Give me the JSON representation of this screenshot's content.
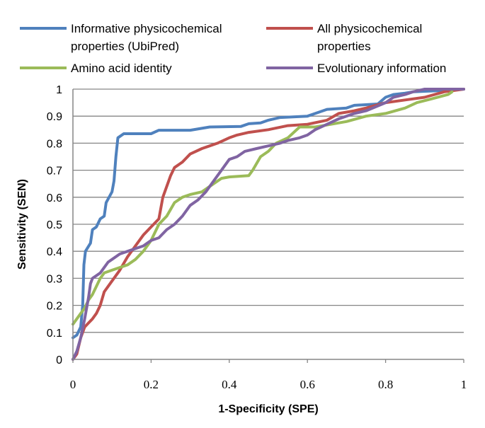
{
  "chart_data": {
    "type": "line",
    "title": "",
    "xlabel": "1-Specificity (SPE)",
    "ylabel": "Sensitivity (SEN)",
    "xlim": [
      0,
      1
    ],
    "ylim": [
      0,
      1
    ],
    "x_ticks": [
      "0",
      "0.2",
      "0.4",
      "0.6",
      "0.8",
      "1"
    ],
    "y_ticks": [
      "0",
      "0.1",
      "0.2",
      "0.3",
      "0.4",
      "0.5",
      "0.6",
      "0.7",
      "0.8",
      "0.9",
      "1"
    ],
    "grid": "horizontal",
    "legend_position": "top",
    "series": [
      {
        "name": "Informative physicochemical properties (UbiPred)",
        "legend_lines": [
          "Informative physicochemical",
          "properties (UbiPred)"
        ],
        "color": "#4F81BD",
        "points": [
          [
            0,
            0.08
          ],
          [
            0.01,
            0.09
          ],
          [
            0.02,
            0.12
          ],
          [
            0.025,
            0.2
          ],
          [
            0.028,
            0.35
          ],
          [
            0.032,
            0.4
          ],
          [
            0.045,
            0.43
          ],
          [
            0.05,
            0.48
          ],
          [
            0.06,
            0.49
          ],
          [
            0.07,
            0.52
          ],
          [
            0.08,
            0.53
          ],
          [
            0.085,
            0.58
          ],
          [
            0.1,
            0.62
          ],
          [
            0.105,
            0.66
          ],
          [
            0.11,
            0.75
          ],
          [
            0.115,
            0.82
          ],
          [
            0.13,
            0.835
          ],
          [
            0.2,
            0.835
          ],
          [
            0.22,
            0.848
          ],
          [
            0.3,
            0.848
          ],
          [
            0.35,
            0.86
          ],
          [
            0.43,
            0.862
          ],
          [
            0.45,
            0.872
          ],
          [
            0.48,
            0.875
          ],
          [
            0.5,
            0.885
          ],
          [
            0.53,
            0.895
          ],
          [
            0.6,
            0.9
          ],
          [
            0.62,
            0.91
          ],
          [
            0.65,
            0.925
          ],
          [
            0.7,
            0.93
          ],
          [
            0.72,
            0.94
          ],
          [
            0.78,
            0.945
          ],
          [
            0.8,
            0.97
          ],
          [
            0.82,
            0.98
          ],
          [
            0.85,
            0.985
          ],
          [
            0.87,
            0.99
          ],
          [
            0.95,
            0.995
          ],
          [
            1,
            1
          ]
        ]
      },
      {
        "name": "All physicochemical properties",
        "legend_lines": [
          "All physicochemical",
          "properties"
        ],
        "color": "#C0504D",
        "points": [
          [
            0,
            0
          ],
          [
            0.01,
            0.02
          ],
          [
            0.02,
            0.08
          ],
          [
            0.03,
            0.12
          ],
          [
            0.05,
            0.15
          ],
          [
            0.06,
            0.17
          ],
          [
            0.07,
            0.2
          ],
          [
            0.08,
            0.25
          ],
          [
            0.1,
            0.29
          ],
          [
            0.12,
            0.33
          ],
          [
            0.14,
            0.38
          ],
          [
            0.16,
            0.42
          ],
          [
            0.18,
            0.46
          ],
          [
            0.2,
            0.49
          ],
          [
            0.22,
            0.52
          ],
          [
            0.23,
            0.6
          ],
          [
            0.25,
            0.68
          ],
          [
            0.26,
            0.71
          ],
          [
            0.28,
            0.73
          ],
          [
            0.3,
            0.76
          ],
          [
            0.33,
            0.78
          ],
          [
            0.35,
            0.79
          ],
          [
            0.37,
            0.8
          ],
          [
            0.4,
            0.82
          ],
          [
            0.42,
            0.83
          ],
          [
            0.45,
            0.84
          ],
          [
            0.5,
            0.85
          ],
          [
            0.55,
            0.865
          ],
          [
            0.6,
            0.87
          ],
          [
            0.65,
            0.885
          ],
          [
            0.68,
            0.91
          ],
          [
            0.72,
            0.92
          ],
          [
            0.75,
            0.93
          ],
          [
            0.8,
            0.95
          ],
          [
            0.85,
            0.96
          ],
          [
            0.9,
            0.97
          ],
          [
            0.95,
            0.99
          ],
          [
            1,
            1
          ]
        ]
      },
      {
        "name": "Amino acid identity",
        "legend_lines": [
          "Amino acid identity"
        ],
        "color": "#9BBB59",
        "points": [
          [
            0,
            0.13
          ],
          [
            0.01,
            0.15
          ],
          [
            0.02,
            0.17
          ],
          [
            0.03,
            0.19
          ],
          [
            0.04,
            0.22
          ],
          [
            0.05,
            0.24
          ],
          [
            0.06,
            0.27
          ],
          [
            0.07,
            0.3
          ],
          [
            0.08,
            0.32
          ],
          [
            0.1,
            0.33
          ],
          [
            0.12,
            0.34
          ],
          [
            0.14,
            0.35
          ],
          [
            0.16,
            0.37
          ],
          [
            0.18,
            0.4
          ],
          [
            0.2,
            0.44
          ],
          [
            0.22,
            0.5
          ],
          [
            0.24,
            0.53
          ],
          [
            0.26,
            0.58
          ],
          [
            0.28,
            0.6
          ],
          [
            0.3,
            0.61
          ],
          [
            0.33,
            0.62
          ],
          [
            0.36,
            0.65
          ],
          [
            0.38,
            0.67
          ],
          [
            0.4,
            0.675
          ],
          [
            0.45,
            0.68
          ],
          [
            0.46,
            0.7
          ],
          [
            0.48,
            0.75
          ],
          [
            0.5,
            0.77
          ],
          [
            0.52,
            0.8
          ],
          [
            0.55,
            0.82
          ],
          [
            0.58,
            0.86
          ],
          [
            0.62,
            0.86
          ],
          [
            0.66,
            0.87
          ],
          [
            0.7,
            0.88
          ],
          [
            0.75,
            0.9
          ],
          [
            0.8,
            0.91
          ],
          [
            0.85,
            0.93
          ],
          [
            0.88,
            0.95
          ],
          [
            0.92,
            0.965
          ],
          [
            0.96,
            0.98
          ],
          [
            0.97,
            0.99
          ]
        ]
      },
      {
        "name": "Evolutionary information",
        "legend_lines": [
          "Evolutionary information"
        ],
        "color": "#8064A2",
        "points": [
          [
            0,
            0
          ],
          [
            0.01,
            0.03
          ],
          [
            0.02,
            0.08
          ],
          [
            0.03,
            0.15
          ],
          [
            0.04,
            0.23
          ],
          [
            0.045,
            0.28
          ],
          [
            0.05,
            0.3
          ],
          [
            0.06,
            0.31
          ],
          [
            0.07,
            0.32
          ],
          [
            0.08,
            0.34
          ],
          [
            0.09,
            0.36
          ],
          [
            0.1,
            0.37
          ],
          [
            0.12,
            0.39
          ],
          [
            0.14,
            0.4
          ],
          [
            0.16,
            0.41
          ],
          [
            0.18,
            0.42
          ],
          [
            0.2,
            0.44
          ],
          [
            0.22,
            0.45
          ],
          [
            0.24,
            0.48
          ],
          [
            0.26,
            0.5
          ],
          [
            0.28,
            0.53
          ],
          [
            0.3,
            0.57
          ],
          [
            0.32,
            0.59
          ],
          [
            0.34,
            0.62
          ],
          [
            0.36,
            0.66
          ],
          [
            0.38,
            0.7
          ],
          [
            0.4,
            0.74
          ],
          [
            0.42,
            0.75
          ],
          [
            0.44,
            0.77
          ],
          [
            0.47,
            0.78
          ],
          [
            0.5,
            0.79
          ],
          [
            0.53,
            0.8
          ],
          [
            0.55,
            0.81
          ],
          [
            0.58,
            0.82
          ],
          [
            0.6,
            0.83
          ],
          [
            0.62,
            0.85
          ],
          [
            0.65,
            0.87
          ],
          [
            0.68,
            0.89
          ],
          [
            0.72,
            0.91
          ],
          [
            0.75,
            0.92
          ],
          [
            0.8,
            0.95
          ],
          [
            0.82,
            0.97
          ],
          [
            0.85,
            0.98
          ],
          [
            0.87,
            0.99
          ],
          [
            0.9,
            1
          ],
          [
            1,
            1
          ]
        ]
      }
    ]
  }
}
